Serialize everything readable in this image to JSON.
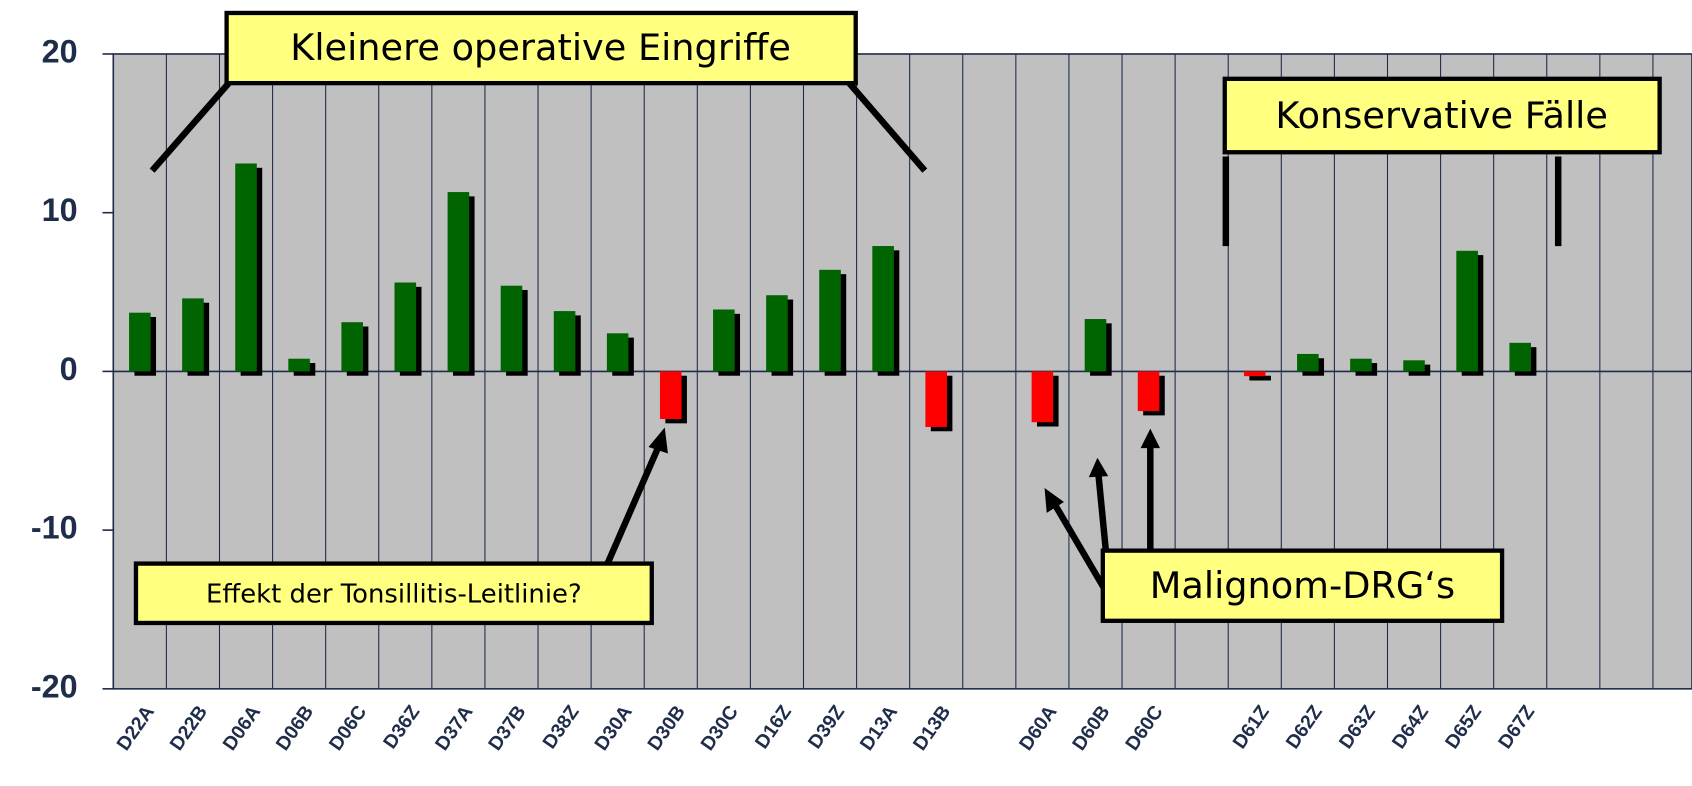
{
  "chart_data": {
    "type": "bar",
    "categories": [
      "D22A",
      "D22B",
      "D06A",
      "D06B",
      "D06C",
      "D36Z",
      "D37A",
      "D37B",
      "D38Z",
      "D30A",
      "D30B",
      "D30C",
      "D16Z",
      "D39Z",
      "D13A",
      "D13B",
      null,
      "D60A",
      "D60B",
      "D60C",
      null,
      "D61Z",
      "D62Z",
      "D63Z",
      "D64Z",
      "D65Z",
      "D67Z",
      null,
      null,
      null
    ],
    "values": [
      3.7,
      4.6,
      13.1,
      0.8,
      3.1,
      5.6,
      11.3,
      5.4,
      3.8,
      2.4,
      -3.0,
      3.9,
      4.8,
      6.4,
      7.9,
      -3.5,
      null,
      -3.2,
      3.3,
      -2.5,
      null,
      -0.3,
      1.1,
      0.8,
      0.7,
      7.6,
      1.8,
      null,
      null,
      null
    ],
    "positive_color": "#006400",
    "negative_color": "#ff0000",
    "ylim": [
      -20,
      20
    ],
    "yticks": [
      -20,
      -10,
      0,
      10,
      20
    ],
    "grid": false,
    "annotations": [
      "Kleinere operative Eingriffe",
      "Konservative Fälle",
      "Effekt der Tonsillitis-Leitlinie?",
      "Malignom-DRG‘s"
    ]
  }
}
